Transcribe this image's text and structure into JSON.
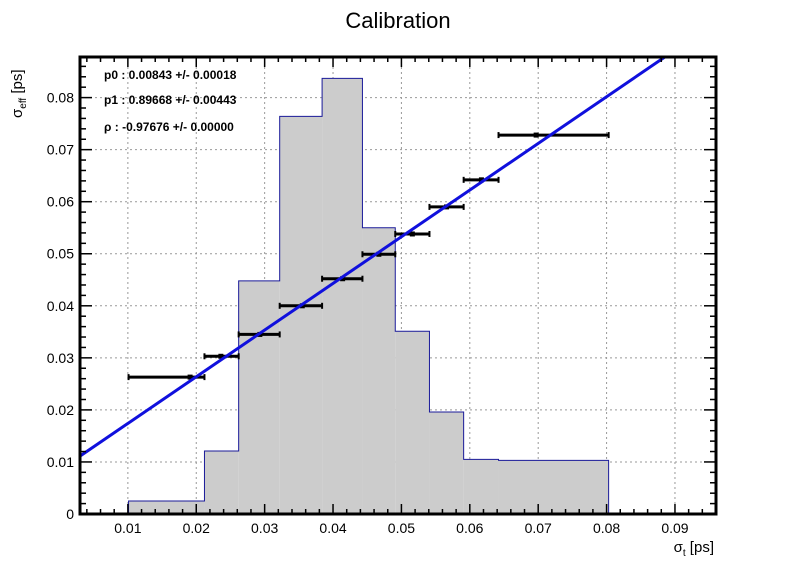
{
  "chart_data": {
    "type": "histogram+scatter",
    "title": "Calibration",
    "xlabel": {
      "main": "σ",
      "sub": "t",
      "unit": " [ps]"
    },
    "ylabel": {
      "main": "σ",
      "sub": "eff",
      "unit": " [ps]"
    },
    "xlim": [
      0.003,
      0.096
    ],
    "ylim": [
      0,
      0.0878
    ],
    "xticks": [
      {
        "value": 0.01,
        "label": "0.01"
      },
      {
        "value": 0.02,
        "label": "0.02"
      },
      {
        "value": 0.03,
        "label": "0.03"
      },
      {
        "value": 0.04,
        "label": "0.04"
      },
      {
        "value": 0.05,
        "label": "0.05"
      },
      {
        "value": 0.06,
        "label": "0.06"
      },
      {
        "value": 0.07,
        "label": "0.07"
      },
      {
        "value": 0.08,
        "label": "0.08"
      },
      {
        "value": 0.09,
        "label": "0.09"
      }
    ],
    "yticks": [
      {
        "value": 0,
        "label": "0"
      },
      {
        "value": 0.01,
        "label": "0.01"
      },
      {
        "value": 0.02,
        "label": "0.02"
      },
      {
        "value": 0.03,
        "label": "0.03"
      },
      {
        "value": 0.04,
        "label": "0.04"
      },
      {
        "value": 0.05,
        "label": "0.05"
      },
      {
        "value": 0.06,
        "label": "0.06"
      },
      {
        "value": 0.07,
        "label": "0.07"
      },
      {
        "value": 0.08,
        "label": "0.08"
      }
    ],
    "grid": true,
    "histogram": {
      "edges": [
        0.0101,
        0.0212,
        0.0262,
        0.0322,
        0.0384,
        0.0443,
        0.0491,
        0.0541,
        0.0591,
        0.0642,
        0.0803
      ],
      "heights": [
        0.0025,
        0.0121,
        0.0448,
        0.0764,
        0.0837,
        0.055,
        0.0351,
        0.0196,
        0.0105,
        0.0103
      ],
      "fill": "#cccccc",
      "stroke": "#1a1a99"
    },
    "points": [
      {
        "x": 0.0191,
        "y": 0.0263,
        "xlo": 0.0101,
        "xhi": 0.0212
      },
      {
        "x": 0.0236,
        "y": 0.0303,
        "xlo": 0.0212,
        "xhi": 0.0262
      },
      {
        "x": 0.0293,
        "y": 0.0345,
        "xlo": 0.0262,
        "xhi": 0.0322
      },
      {
        "x": 0.0355,
        "y": 0.04,
        "xlo": 0.0322,
        "xhi": 0.0384
      },
      {
        "x": 0.0414,
        "y": 0.0452,
        "xlo": 0.0384,
        "xhi": 0.0443
      },
      {
        "x": 0.0467,
        "y": 0.0499,
        "xlo": 0.0443,
        "xhi": 0.0491
      },
      {
        "x": 0.0516,
        "y": 0.0538,
        "xlo": 0.0491,
        "xhi": 0.0541
      },
      {
        "x": 0.0566,
        "y": 0.059,
        "xlo": 0.0541,
        "xhi": 0.0591
      },
      {
        "x": 0.0617,
        "y": 0.0642,
        "xlo": 0.0591,
        "xhi": 0.0642
      },
      {
        "x": 0.0697,
        "y": 0.0728,
        "xlo": 0.0642,
        "xhi": 0.0803
      }
    ],
    "fit": {
      "p0": 0.00843,
      "p1": 0.89668,
      "color": "#1010dd",
      "x_range": [
        0.003,
        0.096
      ]
    },
    "stats": [
      "p0 : 0.00843 +/- 0.00018",
      "p1 : 0.89668 +/- 0.00443",
      "ρ : -0.97676 +/- 0.00000"
    ]
  }
}
